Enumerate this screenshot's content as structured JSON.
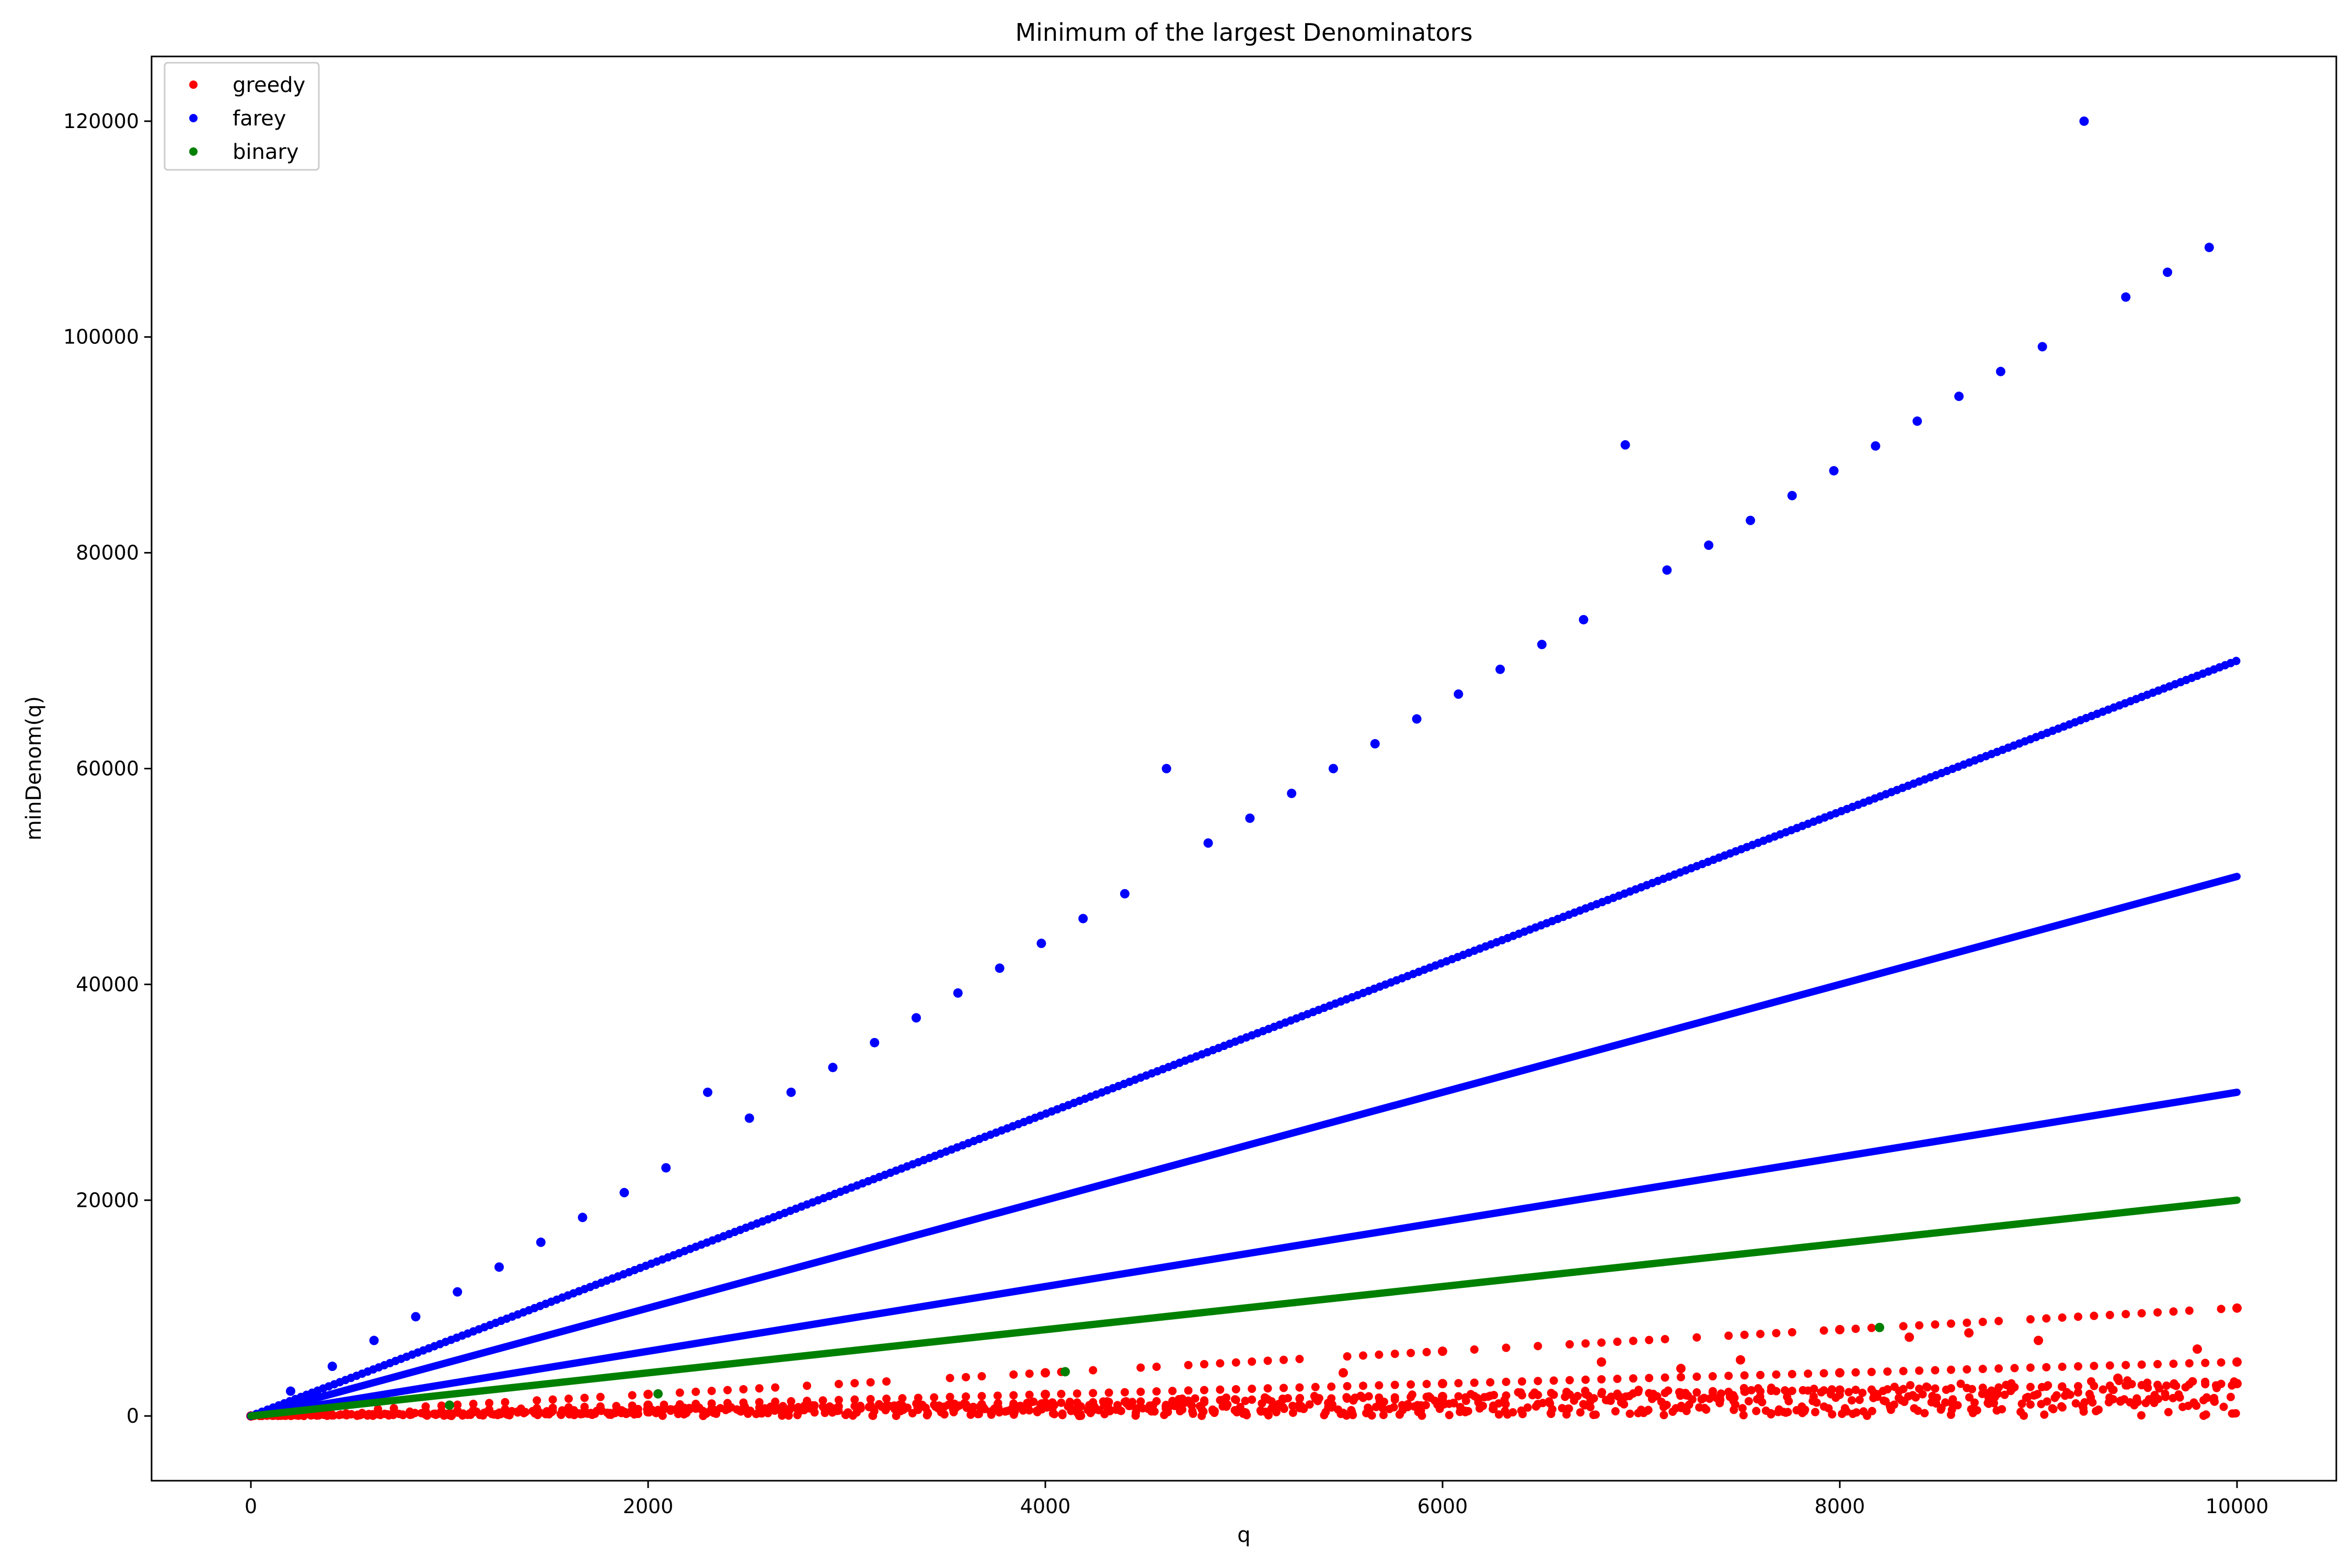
{
  "chart_data": {
    "type": "scatter",
    "title": "Minimum of the largest Denominators",
    "xlabel": "q",
    "ylabel": "minDenom(q)",
    "xlim": [
      -500,
      10500
    ],
    "ylim": [
      -6000,
      126000
    ],
    "xticks": [
      0,
      2000,
      4000,
      6000,
      8000,
      10000
    ],
    "yticks": [
      0,
      20000,
      40000,
      60000,
      80000,
      100000,
      120000
    ],
    "xtick_labels": [
      "0",
      "2000",
      "4000",
      "6000",
      "8000",
      "10000"
    ],
    "ytick_labels": [
      "0",
      "20000",
      "40000",
      "60000",
      "80000",
      "100000",
      "120000"
    ],
    "legend_position": "top-left",
    "grid": false,
    "series": [
      {
        "name": "greedy",
        "color": "#ff0000",
        "description_trends": [
          {
            "slope": 1.0,
            "x_range": [
              0,
              10000
            ]
          },
          {
            "slope": 0.5,
            "x_range": [
              0,
              10000
            ]
          },
          {
            "slope": 0.3,
            "x_range": [
              0,
              10000
            ]
          }
        ],
        "points": [
          [
            0,
            0
          ],
          [
            2000,
            2000
          ],
          [
            4000,
            4000
          ],
          [
            6000,
            6000
          ],
          [
            8000,
            8000
          ],
          [
            10000,
            10000
          ],
          [
            2000,
            1000
          ],
          [
            4000,
            2000
          ],
          [
            6000,
            3000
          ],
          [
            8000,
            4000
          ],
          [
            10000,
            5000
          ],
          [
            2000,
            600
          ],
          [
            4000,
            1200
          ],
          [
            6000,
            1800
          ],
          [
            8000,
            2400
          ],
          [
            10000,
            3000
          ],
          [
            8350,
            7300
          ],
          [
            8650,
            7700
          ],
          [
            9000,
            7000
          ],
          [
            9800,
            6200
          ],
          [
            9400,
            3500
          ],
          [
            5500,
            4000
          ],
          [
            6800,
            5000
          ],
          [
            7200,
            4400
          ],
          [
            7500,
            5200
          ]
        ]
      },
      {
        "name": "farey",
        "color": "#0000ff",
        "trends": [
          {
            "slope": 7,
            "x_range": [
              0,
              10000
            ]
          },
          {
            "slope": 5,
            "x_range": [
              0,
              10000
            ]
          },
          {
            "slope": 3,
            "x_range": [
              0,
              10000
            ]
          }
        ],
        "points": [
          [
            200,
            2300
          ],
          [
            410,
            4600
          ],
          [
            620,
            7000
          ],
          [
            830,
            9200
          ],
          [
            1040,
            11500
          ],
          [
            1250,
            13800
          ],
          [
            1460,
            16100
          ],
          [
            1670,
            18400
          ],
          [
            1880,
            20700
          ],
          [
            2090,
            23000
          ],
          [
            2300,
            30000
          ],
          [
            2510,
            27600
          ],
          [
            2720,
            30000
          ],
          [
            2930,
            32300
          ],
          [
            3140,
            34600
          ],
          [
            3350,
            36900
          ],
          [
            3560,
            39200
          ],
          [
            3770,
            41500
          ],
          [
            3980,
            43800
          ],
          [
            4190,
            46100
          ],
          [
            4400,
            48400
          ],
          [
            4610,
            60000
          ],
          [
            4820,
            53100
          ],
          [
            5030,
            55400
          ],
          [
            5240,
            57700
          ],
          [
            5450,
            60000
          ],
          [
            5660,
            62300
          ],
          [
            5870,
            64600
          ],
          [
            6080,
            66900
          ],
          [
            6290,
            69200
          ],
          [
            6500,
            71500
          ],
          [
            6710,
            73800
          ],
          [
            6920,
            90000
          ],
          [
            7130,
            78400
          ],
          [
            7340,
            80700
          ],
          [
            7550,
            83000
          ],
          [
            7760,
            85300
          ],
          [
            7970,
            87600
          ],
          [
            8180,
            89900
          ],
          [
            8390,
            92200
          ],
          [
            8600,
            94500
          ],
          [
            8810,
            96800
          ],
          [
            9020,
            99100
          ],
          [
            9230,
            120000
          ],
          [
            9440,
            103700
          ],
          [
            9650,
            106000
          ],
          [
            9860,
            108300
          ]
        ]
      },
      {
        "name": "binary",
        "color": "#008000",
        "trends": [
          {
            "slope": 2,
            "x_range": [
              0,
              10000
            ]
          }
        ],
        "points": [
          [
            1000,
            1000
          ],
          [
            2050,
            2050
          ],
          [
            4100,
            4100
          ],
          [
            8200,
            8200
          ]
        ]
      }
    ]
  }
}
